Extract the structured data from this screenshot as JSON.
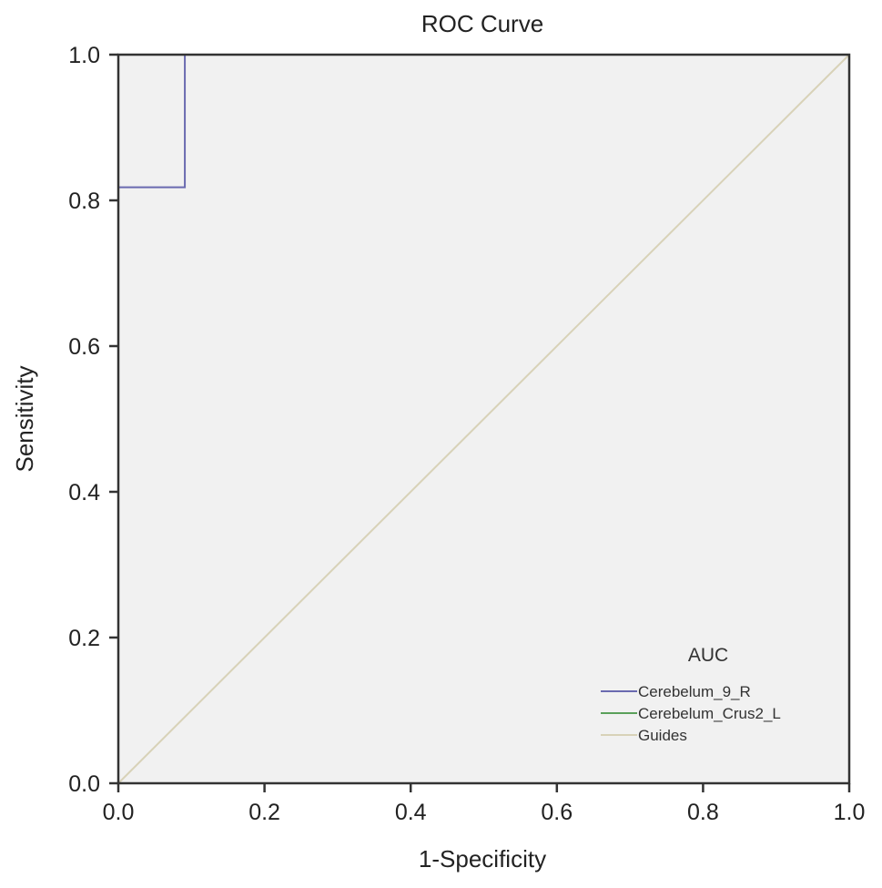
{
  "chart_data": {
    "type": "line",
    "title": "ROC Curve",
    "xlabel": "1-Specificity",
    "ylabel": "Sensitivity",
    "xlim": [
      0,
      1
    ],
    "ylim": [
      0,
      1
    ],
    "xticks": [
      "0.0",
      "0.2",
      "0.4",
      "0.6",
      "0.8",
      "1.0"
    ],
    "yticks": [
      "0.0",
      "0.2",
      "0.4",
      "0.6",
      "0.8",
      "1.0"
    ],
    "legend_title": "AUC",
    "legend_position": "bottom-right",
    "series": [
      {
        "name": "Cerebelum_9_R",
        "color": "#6a6ab0",
        "x": [
          0,
          0,
          0.091,
          0.091,
          1
        ],
        "y": [
          0,
          0.818,
          0.818,
          1,
          1
        ]
      },
      {
        "name": "Cerebelum_Crus2_L",
        "color": "#5aa05a",
        "x": [
          0,
          0,
          1
        ],
        "y": [
          0,
          1,
          1
        ]
      },
      {
        "name": "Guides",
        "color": "#d8d2b8",
        "x": [
          0,
          1
        ],
        "y": [
          0,
          1
        ]
      }
    ]
  }
}
